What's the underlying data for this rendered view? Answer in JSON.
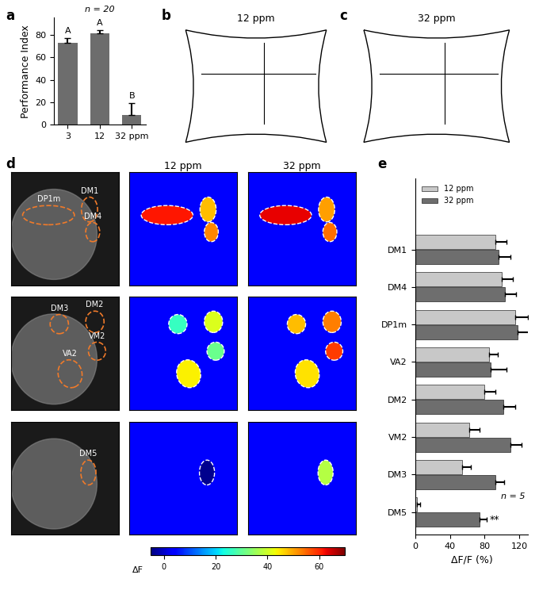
{
  "chart_data": [
    {
      "panel": "a",
      "type": "bar",
      "categories": [
        "3",
        "12",
        "32 ppm"
      ],
      "values": [
        73,
        81,
        9
      ],
      "errors": [
        4,
        3,
        10
      ],
      "color": "#6d6d6d",
      "y_label": "Performance Index",
      "ylim": [
        0,
        95
      ],
      "yticks": [
        0,
        20,
        40,
        60,
        80
      ],
      "annotations": [
        "A",
        "A",
        "B"
      ],
      "note": "n = 20"
    },
    {
      "panel": "e",
      "type": "bar",
      "orientation": "horizontal",
      "categories": [
        "DM1",
        "DM4",
        "DP1m",
        "VA2",
        "DM2",
        "VM2",
        "DM3",
        "DM5"
      ],
      "series": [
        {
          "name": "12 ppm",
          "color": "#c8c8c8",
          "values": [
            92,
            100,
            115,
            85,
            80,
            62,
            54,
            2
          ],
          "errors": [
            13,
            12,
            15,
            10,
            12,
            12,
            10,
            4
          ]
        },
        {
          "name": "32 ppm",
          "color": "#6e6e6e",
          "values": [
            96,
            103,
            118,
            87,
            101,
            110,
            92,
            74
          ],
          "errors": [
            14,
            13,
            15,
            18,
            14,
            12,
            10,
            8
          ]
        }
      ],
      "x_label": "ΔF/F (%)",
      "xlim": [
        0,
        130
      ],
      "xticks": [
        0,
        40,
        80,
        120
      ],
      "legend": "upper left",
      "note": "n = 5",
      "annotations": [
        {
          "category": "DM5",
          "text": "**"
        }
      ]
    }
  ],
  "images": {
    "b": {
      "panel": "b",
      "title": "12 ppm"
    },
    "c": {
      "panel": "c",
      "title": "32 ppm"
    },
    "d": {
      "panel": "d",
      "columns": [
        "12 ppm",
        "32 ppm"
      ],
      "rows": [
        [
          "DP1m",
          "DM1",
          "DM4"
        ],
        [
          "DM3",
          "DM2",
          "VM2",
          "VA2"
        ],
        [
          "DM5"
        ]
      ],
      "colorbar": {
        "label": "ΔF",
        "range": [
          -5,
          70
        ],
        "ticks": [
          0,
          20,
          40,
          60
        ]
      }
    }
  }
}
